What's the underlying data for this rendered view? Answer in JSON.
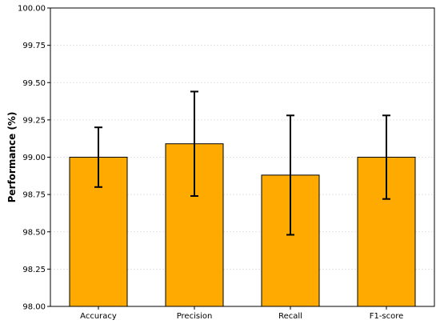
{
  "chart_data": {
    "type": "bar",
    "title": "",
    "xlabel": "",
    "ylabel": "Performance (%)",
    "ylim": [
      98.0,
      100.0
    ],
    "yticks": [
      "98.00",
      "98.25",
      "98.50",
      "98.75",
      "99.00",
      "99.25",
      "99.50",
      "99.75",
      "100.00"
    ],
    "grid": "horizontal, light dotted",
    "categories": [
      "Accuracy",
      "Precision",
      "Recall",
      "F1-score"
    ],
    "values": [
      99.0,
      99.09,
      98.88,
      99.0
    ],
    "error_low": [
      98.8,
      98.74,
      98.48,
      98.72
    ],
    "error_high": [
      99.2,
      99.44,
      99.28,
      99.28
    ],
    "bar_color": "#FFAA00",
    "edge_color": "#000000"
  }
}
